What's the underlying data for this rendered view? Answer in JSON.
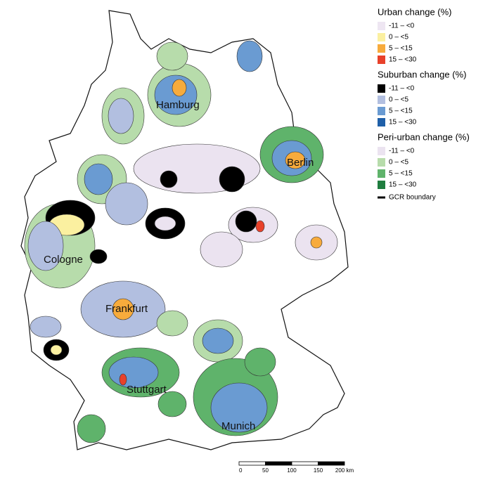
{
  "map": {
    "legend": [
      {
        "title": "Urban change (%)",
        "items": [
          {
            "label": "-11 – <0",
            "color": "#eee6f2"
          },
          {
            "label": "0 – <5",
            "color": "#fbf0a0"
          },
          {
            "label": "5 – <15",
            "color": "#f7ab3c"
          },
          {
            "label": "15 – <30",
            "color": "#e8412a"
          }
        ]
      },
      {
        "title": "Suburban change (%)",
        "items": [
          {
            "label": "-11 – <0",
            "color": "#000000"
          },
          {
            "label": "0 – <5",
            "color": "#b2bfe0"
          },
          {
            "label": "5 – <15",
            "color": "#6a9bd2"
          },
          {
            "label": "15 – <30",
            "color": "#1f5fa8"
          }
        ]
      },
      {
        "title": "Peri-urban change (%)",
        "items": [
          {
            "label": "-11 – <0",
            "color": "#ebe3f0"
          },
          {
            "label": "0 – <5",
            "color": "#b7dcab"
          },
          {
            "label": "5 – <15",
            "color": "#5fb36b"
          },
          {
            "label": "15 – <30",
            "color": "#1f7d3f"
          }
        ]
      }
    ],
    "boundary_label": "GCR boundary",
    "cities": [
      "Hamburg",
      "Berlin",
      "Cologne",
      "Frankfurt",
      "Stuttgart",
      "Munich"
    ],
    "scale_bar": [
      "0",
      "50",
      "100",
      "150",
      "200 km"
    ]
  }
}
